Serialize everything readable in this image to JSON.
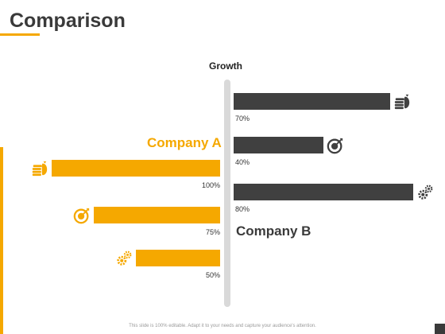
{
  "slide": {
    "title": "Comparison",
    "footer": "This slide is 100% editable. Adapt it to your needs and capture your audience's attention."
  },
  "chart_data": {
    "type": "bar",
    "title": "Growth",
    "series": [
      {
        "name": "Company A",
        "color": "#f5a800",
        "side": "left",
        "items": [
          {
            "value": 100,
            "label": "100%",
            "icon": "money-coins-icon"
          },
          {
            "value": 75,
            "label": "75%",
            "icon": "target-icon"
          },
          {
            "value": 50,
            "label": "50%",
            "icon": "gears-icon"
          }
        ]
      },
      {
        "name": "Company B",
        "color": "#404040",
        "side": "right",
        "items": [
          {
            "value": 70,
            "label": "70%",
            "icon": "money-coins-icon"
          },
          {
            "value": 40,
            "label": "40%",
            "icon": "target-icon"
          },
          {
            "value": 80,
            "label": "80%",
            "icon": "gears-icon"
          }
        ]
      }
    ]
  }
}
